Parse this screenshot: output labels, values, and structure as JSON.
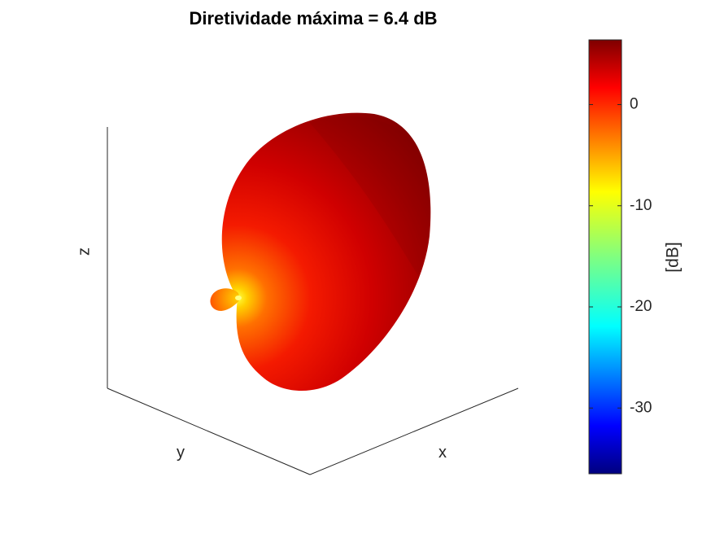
{
  "chart_data": {
    "type": "3d-surface",
    "title": "Diretividade máxima = 6.4 dB",
    "axes": {
      "xlabel": "x",
      "ylabel": "y",
      "zlabel": "z",
      "grid": false
    },
    "series": [
      {
        "max_directivity_db": 6.4
      }
    ],
    "colorbar": {
      "label": "[dB]",
      "colormap": "jet",
      "range": [
        -36.5,
        6.4
      ],
      "ticks": [
        0,
        -10,
        -20,
        -30
      ],
      "tick_labels": [
        "0",
        "-10",
        "-20",
        "-30"
      ],
      "placement": "right"
    },
    "colors": {
      "lobe_max": "#800000",
      "lobe_mid": "#ff0000",
      "lobe_min_visible": "#ffff00"
    }
  }
}
